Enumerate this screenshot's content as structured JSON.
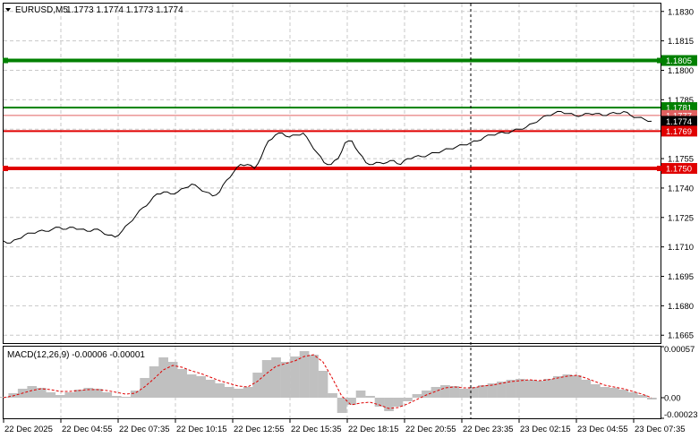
{
  "header": {
    "symbol": "EURUSD,M5",
    "ohlc": "1.1773 1.1774 1.1773 1.1774"
  },
  "macd": {
    "label": "MACD(12,26,9) -0.00006 -0.00001",
    "axis_labels": [
      "0.00057",
      "0.00",
      "-0.00023"
    ]
  },
  "colors": {
    "price_line": "#000000",
    "green_level": "#008000",
    "red_level": "#e00000",
    "histogram": "#c0c0c0",
    "signal": "#e00000",
    "grid": "#c8c8c8"
  },
  "chart_data": [
    {
      "type": "line",
      "title": "",
      "y_ticks": [
        "1.1830",
        "1.1815",
        "1.1800",
        "1.1785",
        "1.1770",
        "1.1755",
        "1.1740",
        "1.1725",
        "1.1710",
        "1.1695",
        "1.1680",
        "1.1665"
      ],
      "x_ticks": [
        "22 Dec 2025",
        "22 Dec 04:55",
        "22 Dec 07:35",
        "22 Dec 10:15",
        "22 Dec 12:55",
        "22 Dec 15:35",
        "22 Dec 18:15",
        "22 Dec 20:55",
        "22 Dec 23:35",
        "23 Dec 02:15",
        "23 Dec 04:55",
        "23 Dec 07:35"
      ],
      "ylim": [
        1.1661,
        1.1834
      ],
      "grid": true,
      "levels": [
        {
          "price": 1.1805,
          "label": "1.1805",
          "color": "#008000",
          "kind": "thick"
        },
        {
          "price": 1.1781,
          "label": "1.1781",
          "color": "#008000",
          "kind": "thin"
        },
        {
          "price": 1.1777,
          "label": "1.1777",
          "color": "#e06060",
          "kind": "hair"
        },
        {
          "price": 1.1774,
          "label": "1.1774",
          "color": "#000000",
          "kind": "bid"
        },
        {
          "price": 1.1769,
          "label": "1.1769",
          "color": "#e00000",
          "kind": "thin"
        },
        {
          "price": 1.175,
          "label": "1.1750",
          "color": "#e00000",
          "kind": "thick"
        }
      ],
      "series": [
        {
          "values": [
            1.1713,
            1.1712,
            1.1714,
            1.1716,
            1.1717,
            1.1718,
            1.1718,
            1.1719,
            1.172,
            1.1719,
            1.172,
            1.1719,
            1.1718,
            1.1719,
            1.1718,
            1.1716,
            1.1715,
            1.1718,
            1.1722,
            1.1726,
            1.173,
            1.1733,
            1.1737,
            1.1738,
            1.1737,
            1.1738,
            1.174,
            1.1742,
            1.174,
            1.1738,
            1.1736,
            1.1738,
            1.1744,
            1.1748,
            1.1752,
            1.1752,
            1.175,
            1.1756,
            1.1764,
            1.1767,
            1.1768,
            1.1766,
            1.1767,
            1.1768,
            1.1763,
            1.1758,
            1.1753,
            1.1752,
            1.1755,
            1.1763,
            1.1764,
            1.1758,
            1.1753,
            1.1752,
            1.1753,
            1.1753,
            1.1754,
            1.1752,
            1.1755,
            1.1756,
            1.1756,
            1.1757,
            1.1758,
            1.1759,
            1.176,
            1.1761,
            1.1762,
            1.1763,
            1.1764,
            1.1766,
            1.1767,
            1.1768,
            1.1768,
            1.1769,
            1.177,
            1.1771,
            1.1773,
            1.1775,
            1.1777,
            1.1778,
            1.1779,
            1.1778,
            1.1777,
            1.1777,
            1.1778,
            1.1778,
            1.1777,
            1.1778,
            1.1778,
            1.1779,
            1.1777,
            1.1776,
            1.1775,
            1.1774
          ]
        }
      ]
    },
    {
      "type": "bar",
      "title": "MACD(12,26,9)",
      "ylim": [
        -0.00023,
        0.00057
      ],
      "series": [
        {
          "name": "MACD",
          "values": [
            1e-05,
            5e-05,
            0.0001,
            0.00013,
            0.00011,
            6e-05,
            3e-05,
            6e-05,
            9e-05,
            0.00011,
            0.0001,
            6e-05,
            2e-05,
            1e-05,
            8e-05,
            0.00022,
            0.00035,
            0.00045,
            0.0004,
            0.00032,
            0.00026,
            0.00024,
            0.0002,
            0.00016,
            0.00012,
            0.0001,
            0.00012,
            0.00028,
            0.00042,
            0.00045,
            0.0004,
            0.00046,
            0.00052,
            0.00048,
            0.0003,
            5e-05,
            -0.00017,
            -8e-05,
            8e-05,
            2e-05,
            -0.0001,
            -0.00015,
            -0.0001,
            -4e-05,
            4e-05,
            8e-05,
            0.00012,
            0.00014,
            0.00013,
            0.0001,
            0.00012,
            0.00014,
            0.00016,
            0.00018,
            0.0002,
            0.00021,
            0.0002,
            0.00019,
            0.00021,
            0.00024,
            0.00026,
            0.00025,
            0.0002,
            0.00015,
            0.00012,
            0.00011,
            9e-05,
            6e-05,
            3e-05,
            -2e-05
          ]
        },
        {
          "name": "Signal",
          "values": [
            0.0,
            2e-05,
            5e-05,
            8e-05,
            0.0001,
            9e-05,
            7e-05,
            7e-05,
            8e-05,
            9e-05,
            9e-05,
            8e-05,
            6e-05,
            4e-05,
            5e-05,
            0.00012,
            0.00021,
            0.00031,
            0.00036,
            0.00034,
            0.0003,
            0.00027,
            0.00023,
            0.00019,
            0.00016,
            0.00013,
            0.00012,
            0.00018,
            0.00027,
            0.00035,
            0.00038,
            0.00041,
            0.00046,
            0.00048,
            0.0004,
            0.00022,
            2e-05,
            -8e-05,
            -6e-05,
            -5e-05,
            -8e-05,
            -0.00012,
            -0.00011,
            -7e-05,
            -2e-05,
            3e-05,
            7e-05,
            0.00011,
            0.00012,
            0.00011,
            0.00011,
            0.00013,
            0.00014,
            0.00016,
            0.00018,
            0.00019,
            0.0002,
            0.00019,
            0.0002,
            0.00022,
            0.00024,
            0.00025,
            0.00022,
            0.00018,
            0.00014,
            0.00012,
            0.0001,
            7e-05,
            4e-05,
            0.0
          ]
        }
      ]
    }
  ]
}
